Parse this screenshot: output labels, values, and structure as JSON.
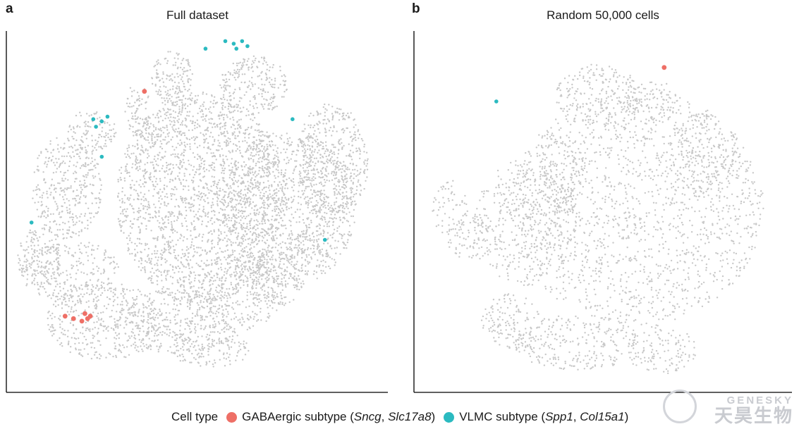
{
  "chart_data": [
    {
      "type": "scatter",
      "panel": "a",
      "title": "Full dataset",
      "xlabel": "",
      "ylabel": "",
      "background_color": "#c8c8c8",
      "series": [
        {
          "name": "GABAergic subtype (Sncg, Slc17a8)",
          "color": "#ee6f66",
          "points": [
            [
              0.362,
              0.167
            ],
            [
              0.154,
              0.789
            ],
            [
              0.176,
              0.796
            ],
            [
              0.198,
              0.803
            ],
            [
              0.213,
              0.796
            ],
            [
              0.206,
              0.782
            ],
            [
              0.22,
              0.789
            ]
          ]
        },
        {
          "name": "VLMC subtype (Spp1, Col15a1)",
          "color": "#2bbac0",
          "points": [
            [
              0.522,
              0.049
            ],
            [
              0.574,
              0.028
            ],
            [
              0.596,
              0.035
            ],
            [
              0.618,
              0.028
            ],
            [
              0.632,
              0.042
            ],
            [
              0.603,
              0.049
            ],
            [
              0.228,
              0.244
            ],
            [
              0.25,
              0.25
            ],
            [
              0.265,
              0.237
            ],
            [
              0.235,
              0.265
            ],
            [
              0.75,
              0.244
            ],
            [
              0.25,
              0.348
            ],
            [
              0.066,
              0.53
            ],
            [
              0.835,
              0.578
            ]
          ]
        }
      ]
    },
    {
      "type": "scatter",
      "panel": "b",
      "title": "Random 50,000 cells",
      "xlabel": "",
      "ylabel": "",
      "background_color": "#c8c8c8",
      "series": [
        {
          "name": "GABAergic subtype (Sncg, Slc17a8)",
          "color": "#ee6f66",
          "points": [
            [
              0.662,
              0.101
            ]
          ]
        },
        {
          "name": "VLMC subtype (Spp1, Col15a1)",
          "color": "#2bbac0",
          "points": [
            [
              0.218,
              0.195
            ]
          ]
        }
      ]
    }
  ],
  "panels": {
    "a": {
      "letter": "a",
      "title": "Full dataset"
    },
    "b": {
      "letter": "b",
      "title": "Random 50,000 cells"
    }
  },
  "legend": {
    "title": "Cell type",
    "items": [
      {
        "label": "GABAergic subtype",
        "genes_a": "Sncg",
        "sep": ", ",
        "genes_b": "Slc17a8",
        "color": "#ee6f66"
      },
      {
        "label": "VLMC subtype",
        "genes_a": "Spp1",
        "sep": ", ",
        "genes_b": "Col15a1",
        "color": "#2bbac0"
      }
    ]
  },
  "watermark": {
    "en": "GENESKY",
    "cn": "天昊生物"
  }
}
